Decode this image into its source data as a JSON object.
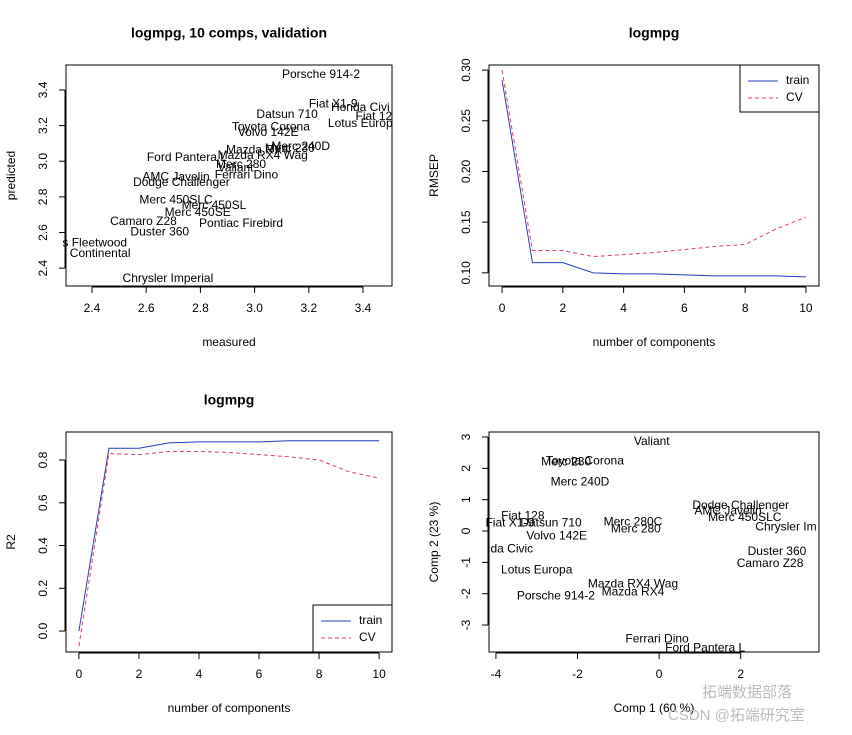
{
  "chart_data": [
    {
      "type": "scatter",
      "title": "logmpg, 10 comps, validation",
      "xlabel": "measured",
      "ylabel": "predicted",
      "xlim": [
        2.304,
        3.507
      ],
      "ylim": [
        2.3,
        3.54
      ],
      "xticks": [
        2.4,
        2.6,
        2.8,
        {
          "value": 3,
          "label": "3.0"
        },
        3.2,
        3.4
      ],
      "yticks": [
        2.4,
        2.6,
        2.8,
        {
          "value": 3,
          "label": "3.0"
        },
        3.2,
        3.4
      ],
      "labels": [
        "Porsche 914-2",
        "Fiat X1-9",
        "Honda Civi",
        "Datsun 710",
        "Lotus Europ",
        "Fiat 12",
        "Toyota Corona",
        "Volvo 142E",
        "Merc 230",
        "Merc 240D",
        "Mazda RX4",
        "Ford Pantera L",
        "Mazda RX4 Wag",
        "Merc 280",
        "Valiant",
        "Ferrari Dino",
        "AMC Javelin",
        "Dodge Challenger",
        "Merc 450SLC",
        "Merc 450SL",
        "Merc 450SE",
        "Camaro Z28",
        "Pontiac Firebird",
        "Duster 360",
        "s Fleetwood",
        "Continental",
        "Chrysler Imperial"
      ],
      "x": [
        3.245,
        3.29,
        3.39,
        3.12,
        3.39,
        3.44,
        3.06,
        3.05,
        3.13,
        3.17,
        3.01,
        2.75,
        3.03,
        2.95,
        2.93,
        2.97,
        2.71,
        2.73,
        2.71,
        2.85,
        2.79,
        2.59,
        2.95,
        2.65,
        2.41,
        2.43,
        2.68
      ],
      "values": [
        3.484,
        3.32,
        3.3,
        3.26,
        3.21,
        3.25,
        3.19,
        3.16,
        3.07,
        3.08,
        3.06,
        3.02,
        3.03,
        2.98,
        2.96,
        2.92,
        2.91,
        2.88,
        2.78,
        2.75,
        2.71,
        2.66,
        2.65,
        2.6,
        2.54,
        2.48,
        2.34
      ]
    },
    {
      "type": "line",
      "title": "logmpg",
      "xlabel": "number of components",
      "ylabel": "RMSEP",
      "xlim": [
        -0.43,
        10.43
      ],
      "ylim": [
        0.087,
        0.305
      ],
      "xticks": [
        0,
        2,
        4,
        6,
        8,
        10
      ],
      "yticks": [
        {
          "value": 0.1,
          "label": "0.10"
        },
        0.15,
        {
          "value": 0.2,
          "label": "0.20"
        },
        0.25,
        {
          "value": 0.3,
          "label": "0.30"
        }
      ],
      "legend": "topright",
      "x": [
        0,
        1,
        2,
        3,
        4,
        5,
        6,
        7,
        8,
        9,
        10
      ],
      "series": [
        {
          "name": "train",
          "color": "#1f3fbf",
          "linestyle": "solid",
          "values": [
            0.29,
            0.11,
            0.11,
            0.1,
            0.099,
            0.099,
            0.098,
            0.097,
            0.097,
            0.097,
            0.096
          ]
        },
        {
          "name": "CV",
          "color": "#e0405a",
          "linestyle": "dashed",
          "values": [
            0.3,
            0.122,
            0.122,
            0.116,
            0.118,
            0.12,
            0.123,
            0.126,
            0.128,
            0.143,
            0.155
          ]
        }
      ]
    },
    {
      "type": "line",
      "title": "logmpg",
      "xlabel": "number of components",
      "ylabel": "R2",
      "xlim": [
        -0.43,
        10.43
      ],
      "ylim": [
        -0.098,
        0.931
      ],
      "xticks": [
        0,
        2,
        4,
        6,
        8,
        10
      ],
      "yticks": [
        {
          "value": 0,
          "label": "0.0"
        },
        0.2,
        0.4,
        0.6,
        0.8
      ],
      "legend": "bottomright",
      "x": [
        0,
        1,
        2,
        3,
        4,
        5,
        6,
        7,
        8,
        9,
        10
      ],
      "series": [
        {
          "name": "train",
          "color": "#1f3fbf",
          "linestyle": "solid",
          "values": [
            0,
            0.855,
            0.855,
            0.88,
            0.885,
            0.885,
            0.885,
            0.89,
            0.89,
            0.89,
            0.89
          ]
        },
        {
          "name": "CV",
          "color": "#e0405a",
          "linestyle": "dashed",
          "values": [
            -0.07,
            0.83,
            0.825,
            0.84,
            0.84,
            0.835,
            0.825,
            0.815,
            0.8,
            0.745,
            0.715
          ]
        }
      ]
    },
    {
      "type": "scatter",
      "xlabel": "Comp 1 (60 %)",
      "ylabel": "Comp 2 (23 %)",
      "xlim": [
        -4.17,
        3.92
      ],
      "ylim": [
        -3.86,
        3.16
      ],
      "xticks": [
        -4,
        -2,
        0,
        2
      ],
      "yticks": [
        -3,
        -2,
        -1,
        0,
        1,
        2,
        3
      ],
      "labels": [
        "Valiant",
        "Toyota Corona",
        "Merc 230",
        "Merc 240D",
        "Fiat 128",
        "Fiat X1-9",
        "Datsun 710",
        "da Civic",
        "Volvo 142E",
        "Merc 280C",
        "Merc 280",
        "Lotus Europa",
        "Mazda RX4 Wag",
        "Mazda RX4",
        "Porsche 914-2",
        "Ferrari Dino",
        "Ford Pantera L",
        "Dodge Challenger",
        "AMC Javelin",
        "Merc 450SLC",
        "Chrysler Im",
        "Duster 360",
        "Camaro Z28"
      ],
      "x": [
        -0.18,
        -1.82,
        -2.28,
        -1.94,
        -3.34,
        -3.66,
        -2.65,
        -3.61,
        -2.51,
        -0.64,
        -0.57,
        -3.0,
        -0.64,
        -0.64,
        -2.53,
        -0.05,
        1.13,
        2.0,
        1.69,
        2.1,
        3.11,
        2.89,
        2.72
      ],
      "values": [
        2.84,
        2.23,
        2.2,
        1.56,
        0.47,
        0.25,
        0.25,
        -0.58,
        -0.17,
        0.28,
        0.06,
        -1.25,
        -1.7,
        -1.96,
        -2.08,
        -3.45,
        -3.74,
        0.8,
        0.63,
        0.42,
        0.12,
        -0.67,
        -1.05
      ]
    }
  ],
  "watermark": [
    "拓端数据部落",
    "CSDN @拓端研究室"
  ]
}
